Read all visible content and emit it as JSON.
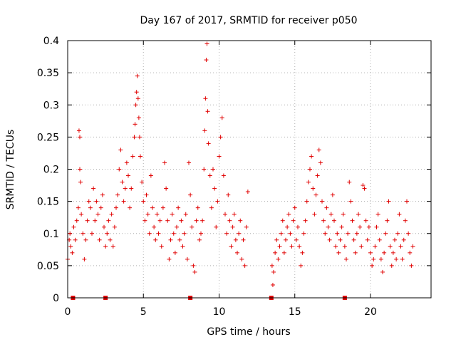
{
  "chart_data": {
    "type": "scatter",
    "title": "Day 167 of 2017, SRMTID for receiver p050",
    "xlabel": "GPS time / hours",
    "ylabel": "SRMTID / TECUs",
    "xlim": [
      0,
      24
    ],
    "ylim": [
      0,
      0.4
    ],
    "x_ticks": [
      0,
      5,
      10,
      15,
      20
    ],
    "x_tick_labels": [
      "0",
      "5",
      "10",
      "15",
      "20"
    ],
    "y_ticks": [
      0,
      0.05,
      0.1,
      0.15,
      0.2,
      0.25,
      0.3,
      0.35,
      0.4
    ],
    "y_tick_labels": [
      "0",
      "0.05",
      "0.1",
      "0.15",
      "0.2",
      "0.25",
      "0.3",
      "0.35",
      "0.4"
    ],
    "grid": true,
    "marker": "+",
    "color": "#e00000",
    "series": [
      {
        "name": "SRMTID",
        "points": [
          [
            0.0,
            0.06
          ],
          [
            0.1,
            0.09
          ],
          [
            0.15,
            0.1
          ],
          [
            0.2,
            0.08
          ],
          [
            0.3,
            0.07
          ],
          [
            0.4,
            0.11
          ],
          [
            0.5,
            0.09
          ],
          [
            0.6,
            0.12
          ],
          [
            0.7,
            0.14
          ],
          [
            0.75,
            0.26
          ],
          [
            0.8,
            0.25
          ],
          [
            0.8,
            0.2
          ],
          [
            0.85,
            0.18
          ],
          [
            0.9,
            0.13
          ],
          [
            1.0,
            0.1
          ],
          [
            1.1,
            0.06
          ],
          [
            1.2,
            0.09
          ],
          [
            1.3,
            0.12
          ],
          [
            1.4,
            0.15
          ],
          [
            1.5,
            0.14
          ],
          [
            1.6,
            0.1
          ],
          [
            1.7,
            0.17
          ],
          [
            1.8,
            0.12
          ],
          [
            1.9,
            0.15
          ],
          [
            2.0,
            0.13
          ],
          [
            2.1,
            0.09
          ],
          [
            2.2,
            0.14
          ],
          [
            2.3,
            0.16
          ],
          [
            2.4,
            0.11
          ],
          [
            2.5,
            0.08
          ],
          [
            2.6,
            0.1
          ],
          [
            2.7,
            0.12
          ],
          [
            2.8,
            0.09
          ],
          [
            2.9,
            0.13
          ],
          [
            3.0,
            0.08
          ],
          [
            3.1,
            0.11
          ],
          [
            3.2,
            0.14
          ],
          [
            3.3,
            0.16
          ],
          [
            3.4,
            0.2
          ],
          [
            3.5,
            0.23
          ],
          [
            3.6,
            0.18
          ],
          [
            3.7,
            0.15
          ],
          [
            3.8,
            0.17
          ],
          [
            3.9,
            0.21
          ],
          [
            4.0,
            0.19
          ],
          [
            4.1,
            0.14
          ],
          [
            4.2,
            0.17
          ],
          [
            4.3,
            0.22
          ],
          [
            4.4,
            0.25
          ],
          [
            4.45,
            0.27
          ],
          [
            4.5,
            0.3
          ],
          [
            4.55,
            0.32
          ],
          [
            4.6,
            0.345
          ],
          [
            4.65,
            0.31
          ],
          [
            4.7,
            0.28
          ],
          [
            4.75,
            0.25
          ],
          [
            4.8,
            0.22
          ],
          [
            4.9,
            0.18
          ],
          [
            5.0,
            0.15
          ],
          [
            5.1,
            0.12
          ],
          [
            5.2,
            0.16
          ],
          [
            5.3,
            0.13
          ],
          [
            5.4,
            0.1
          ],
          [
            5.5,
            0.19
          ],
          [
            5.6,
            0.14
          ],
          [
            5.7,
            0.11
          ],
          [
            5.8,
            0.09
          ],
          [
            5.9,
            0.13
          ],
          [
            6.0,
            0.1
          ],
          [
            6.1,
            0.12
          ],
          [
            6.2,
            0.08
          ],
          [
            6.3,
            0.14
          ],
          [
            6.4,
            0.21
          ],
          [
            6.5,
            0.17
          ],
          [
            6.6,
            0.12
          ],
          [
            6.7,
            0.06
          ],
          [
            6.8,
            0.09
          ],
          [
            6.9,
            0.13
          ],
          [
            7.0,
            0.1
          ],
          [
            7.1,
            0.07
          ],
          [
            7.2,
            0.11
          ],
          [
            7.3,
            0.14
          ],
          [
            7.4,
            0.09
          ],
          [
            7.5,
            0.12
          ],
          [
            7.6,
            0.08
          ],
          [
            7.7,
            0.1
          ],
          [
            7.8,
            0.13
          ],
          [
            7.9,
            0.06
          ],
          [
            8.0,
            0.21
          ],
          [
            8.1,
            0.16
          ],
          [
            8.2,
            0.11
          ],
          [
            8.3,
            0.05
          ],
          [
            8.4,
            0.04
          ],
          [
            8.5,
            0.12
          ],
          [
            8.6,
            0.14
          ],
          [
            8.7,
            0.09
          ],
          [
            8.8,
            0.1
          ],
          [
            8.9,
            0.12
          ],
          [
            9.0,
            0.2
          ],
          [
            9.05,
            0.26
          ],
          [
            9.1,
            0.31
          ],
          [
            9.15,
            0.37
          ],
          [
            9.2,
            0.395
          ],
          [
            9.25,
            0.29
          ],
          [
            9.3,
            0.24
          ],
          [
            9.4,
            0.19
          ],
          [
            9.5,
            0.14
          ],
          [
            9.6,
            0.2
          ],
          [
            9.7,
            0.17
          ],
          [
            9.8,
            0.11
          ],
          [
            9.9,
            0.15
          ],
          [
            10.0,
            0.22
          ],
          [
            10.1,
            0.25
          ],
          [
            10.2,
            0.28
          ],
          [
            10.3,
            0.19
          ],
          [
            10.4,
            0.13
          ],
          [
            10.5,
            0.1
          ],
          [
            10.6,
            0.16
          ],
          [
            10.7,
            0.12
          ],
          [
            10.8,
            0.08
          ],
          [
            10.9,
            0.11
          ],
          [
            11.0,
            0.13
          ],
          [
            11.1,
            0.09
          ],
          [
            11.2,
            0.07
          ],
          [
            11.3,
            0.1
          ],
          [
            11.4,
            0.12
          ],
          [
            11.5,
            0.06
          ],
          [
            11.6,
            0.09
          ],
          [
            11.7,
            0.05
          ],
          [
            11.8,
            0.11
          ],
          [
            11.9,
            0.165
          ],
          [
            13.5,
            0.05
          ],
          [
            13.55,
            0.02
          ],
          [
            13.6,
            0.04
          ],
          [
            13.7,
            0.07
          ],
          [
            13.8,
            0.09
          ],
          [
            13.9,
            0.06
          ],
          [
            14.0,
            0.08
          ],
          [
            14.1,
            0.1
          ],
          [
            14.2,
            0.12
          ],
          [
            14.3,
            0.07
          ],
          [
            14.4,
            0.09
          ],
          [
            14.5,
            0.11
          ],
          [
            14.6,
            0.13
          ],
          [
            14.7,
            0.1
          ],
          [
            14.8,
            0.08
          ],
          [
            14.9,
            0.12
          ],
          [
            15.0,
            0.14
          ],
          [
            15.1,
            0.09
          ],
          [
            15.2,
            0.11
          ],
          [
            15.3,
            0.08
          ],
          [
            15.4,
            0.05
          ],
          [
            15.5,
            0.07
          ],
          [
            15.6,
            0.1
          ],
          [
            15.7,
            0.12
          ],
          [
            15.8,
            0.15
          ],
          [
            15.9,
            0.18
          ],
          [
            16.0,
            0.2
          ],
          [
            16.1,
            0.22
          ],
          [
            16.2,
            0.17
          ],
          [
            16.3,
            0.13
          ],
          [
            16.4,
            0.16
          ],
          [
            16.5,
            0.19
          ],
          [
            16.6,
            0.23
          ],
          [
            16.7,
            0.21
          ],
          [
            16.8,
            0.15
          ],
          [
            16.9,
            0.12
          ],
          [
            17.0,
            0.1
          ],
          [
            17.1,
            0.14
          ],
          [
            17.2,
            0.11
          ],
          [
            17.3,
            0.09
          ],
          [
            17.4,
            0.13
          ],
          [
            17.5,
            0.16
          ],
          [
            17.6,
            0.12
          ],
          [
            17.7,
            0.08
          ],
          [
            17.8,
            0.1
          ],
          [
            17.9,
            0.07
          ],
          [
            18.0,
            0.09
          ],
          [
            18.1,
            0.11
          ],
          [
            18.2,
            0.13
          ],
          [
            18.3,
            0.08
          ],
          [
            18.4,
            0.06
          ],
          [
            18.5,
            0.1
          ],
          [
            18.6,
            0.18
          ],
          [
            18.7,
            0.15
          ],
          [
            18.8,
            0.12
          ],
          [
            18.9,
            0.09
          ],
          [
            19.0,
            0.07
          ],
          [
            19.1,
            0.1
          ],
          [
            19.2,
            0.13
          ],
          [
            19.3,
            0.11
          ],
          [
            19.4,
            0.08
          ],
          [
            19.5,
            0.175
          ],
          [
            19.6,
            0.17
          ],
          [
            19.7,
            0.12
          ],
          [
            19.8,
            0.09
          ],
          [
            19.9,
            0.11
          ],
          [
            20.0,
            0.07
          ],
          [
            20.1,
            0.05
          ],
          [
            20.2,
            0.06
          ],
          [
            20.3,
            0.08
          ],
          [
            20.4,
            0.11
          ],
          [
            20.5,
            0.13
          ],
          [
            20.6,
            0.09
          ],
          [
            20.7,
            0.06
          ],
          [
            20.8,
            0.04
          ],
          [
            20.9,
            0.07
          ],
          [
            21.0,
            0.1
          ],
          [
            21.1,
            0.12
          ],
          [
            21.2,
            0.15
          ],
          [
            21.3,
            0.08
          ],
          [
            21.4,
            0.05
          ],
          [
            21.5,
            0.07
          ],
          [
            21.6,
            0.09
          ],
          [
            21.7,
            0.06
          ],
          [
            21.8,
            0.1
          ],
          [
            21.9,
            0.13
          ],
          [
            22.0,
            0.08
          ],
          [
            22.1,
            0.06
          ],
          [
            22.2,
            0.09
          ],
          [
            22.3,
            0.12
          ],
          [
            22.4,
            0.15
          ],
          [
            22.5,
            0.1
          ],
          [
            22.6,
            0.07
          ],
          [
            22.7,
            0.05
          ],
          [
            22.8,
            0.08
          ]
        ]
      }
    ],
    "zero_markers_x": [
      0.35,
      2.5,
      8.1,
      13.45,
      18.3
    ]
  }
}
